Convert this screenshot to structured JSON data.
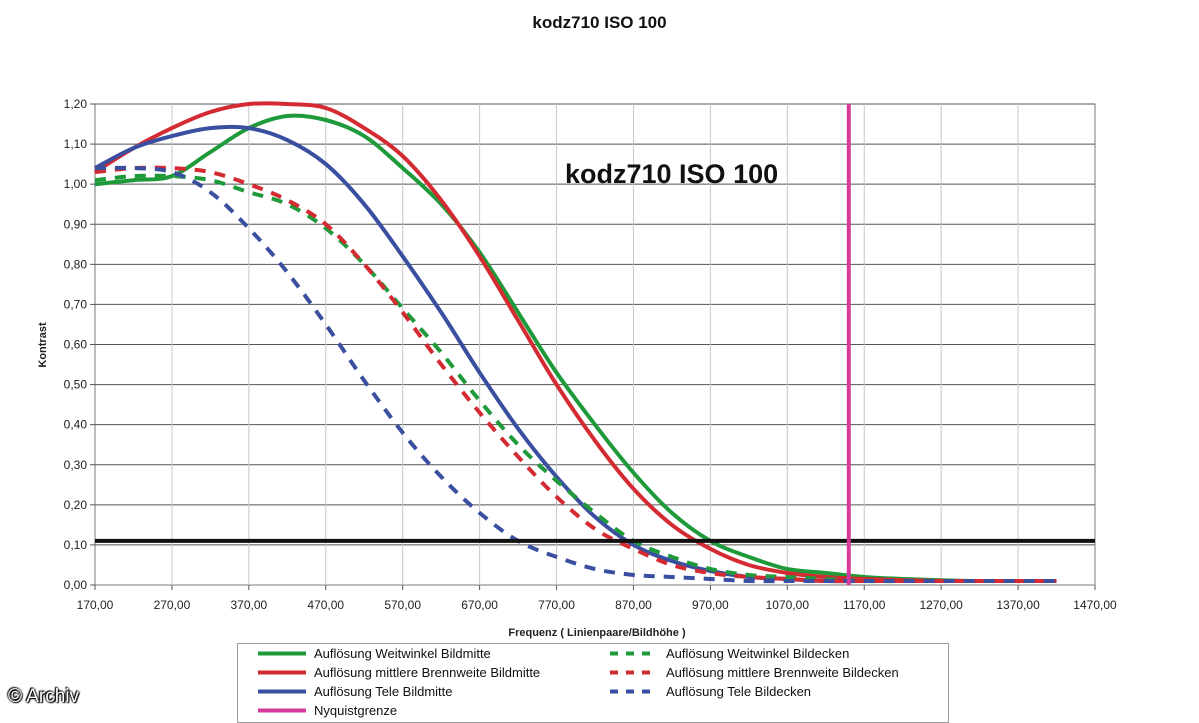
{
  "chart_data": {
    "type": "line",
    "title": "kodz710 ISO 100",
    "annotation": "kodz710 ISO 100",
    "xlabel": "Frequenz ( Linienpaare/Bildhöhe )",
    "ylabel": "Kontrast",
    "xlim": [
      170,
      1470
    ],
    "ylim": [
      0,
      1.2
    ],
    "x_ticks": [
      "170,00",
      "270,00",
      "370,00",
      "470,00",
      "570,00",
      "670,00",
      "770,00",
      "870,00",
      "970,00",
      "1070,00",
      "1170,00",
      "1270,00",
      "1370,00",
      "1470,00"
    ],
    "y_ticks": [
      "0,00",
      "0,10",
      "0,20",
      "0,30",
      "0,40",
      "0,50",
      "0,60",
      "0,70",
      "0,80",
      "0,90",
      "1,00",
      "1,10",
      "1,20"
    ],
    "grid": "horizontal",
    "legend_position": "bottom",
    "reference_lines": [
      {
        "axis": "x",
        "value": 1150,
        "color": "#d63a9a"
      },
      {
        "axis": "y",
        "value": 0.11,
        "color": "#111111"
      }
    ],
    "series": [
      {
        "name": "Auflösung Weitwinkel Bildmitte",
        "color": "#1f9a3a",
        "style": "solid",
        "x": [
          170,
          220,
          270,
          320,
          370,
          420,
          470,
          520,
          570,
          620,
          670,
          720,
          770,
          820,
          870,
          920,
          970,
          1020,
          1070,
          1120,
          1170,
          1220,
          1270,
          1320,
          1370,
          1420
        ],
        "y": [
          1.0,
          1.01,
          1.02,
          1.08,
          1.14,
          1.17,
          1.16,
          1.12,
          1.04,
          0.95,
          0.83,
          0.68,
          0.53,
          0.4,
          0.28,
          0.18,
          0.11,
          0.07,
          0.04,
          0.03,
          0.02,
          0.015,
          0.012,
          0.01,
          0.01,
          0.01
        ]
      },
      {
        "name": "Auflösung mittlere Brennweite Bildmitte",
        "color": "#d42a32",
        "style": "solid",
        "x": [
          170,
          220,
          270,
          320,
          370,
          420,
          470,
          520,
          570,
          620,
          670,
          720,
          770,
          820,
          870,
          920,
          970,
          1020,
          1070,
          1120,
          1170,
          1220,
          1270,
          1320,
          1370,
          1420
        ],
        "y": [
          1.03,
          1.09,
          1.14,
          1.18,
          1.2,
          1.2,
          1.19,
          1.14,
          1.07,
          0.96,
          0.82,
          0.66,
          0.5,
          0.36,
          0.24,
          0.15,
          0.09,
          0.05,
          0.03,
          0.02,
          0.015,
          0.012,
          0.01,
          0.01,
          0.01,
          0.01
        ]
      },
      {
        "name": "Auflösung Tele Bildmitte",
        "color": "#3a4fa0",
        "style": "solid",
        "x": [
          170,
          220,
          270,
          320,
          370,
          420,
          470,
          520,
          570,
          620,
          670,
          720,
          770,
          820,
          870,
          920,
          970,
          1020,
          1070,
          1120,
          1170,
          1220,
          1270,
          1320,
          1370,
          1420
        ],
        "y": [
          1.04,
          1.09,
          1.12,
          1.14,
          1.14,
          1.11,
          1.05,
          0.95,
          0.82,
          0.68,
          0.53,
          0.39,
          0.27,
          0.17,
          0.1,
          0.06,
          0.035,
          0.02,
          0.015,
          0.01,
          0.01,
          0.01,
          0.01,
          0.01,
          0.01,
          0.01
        ]
      },
      {
        "name": "Auflösung Weitwinkel Bildecken",
        "color": "#1f9a3a",
        "style": "dashed",
        "x": [
          170,
          220,
          270,
          320,
          370,
          420,
          470,
          520,
          570,
          620,
          670,
          720,
          770,
          820,
          870,
          920,
          970,
          1020,
          1070,
          1120,
          1170,
          1220,
          1270,
          1320,
          1370,
          1420
        ],
        "y": [
          1.01,
          1.02,
          1.02,
          1.01,
          0.98,
          0.95,
          0.89,
          0.8,
          0.69,
          0.58,
          0.46,
          0.35,
          0.26,
          0.18,
          0.11,
          0.07,
          0.04,
          0.025,
          0.02,
          0.015,
          0.01,
          0.01,
          0.01,
          0.01,
          0.01,
          0.01
        ]
      },
      {
        "name": "Auflösung mittlere Brennweite Bildecken",
        "color": "#d42a32",
        "style": "dashed",
        "x": [
          170,
          220,
          270,
          320,
          370,
          420,
          470,
          520,
          570,
          620,
          670,
          720,
          770,
          820,
          870,
          920,
          970,
          1020,
          1070,
          1120,
          1170,
          1220,
          1270,
          1320,
          1370,
          1420
        ],
        "y": [
          1.03,
          1.04,
          1.04,
          1.03,
          1.0,
          0.96,
          0.9,
          0.8,
          0.68,
          0.55,
          0.43,
          0.32,
          0.22,
          0.14,
          0.09,
          0.05,
          0.03,
          0.02,
          0.015,
          0.01,
          0.01,
          0.01,
          0.01,
          0.01,
          0.01,
          0.01
        ]
      },
      {
        "name": "Auflösung Tele Bildecken",
        "color": "#3a4fa0",
        "style": "dashed",
        "x": [
          170,
          220,
          270,
          320,
          370,
          420,
          470,
          520,
          570,
          620,
          670,
          720,
          770,
          820,
          870,
          920,
          970,
          1020,
          1070,
          1120,
          1170,
          1220,
          1270,
          1320,
          1370,
          1420
        ],
        "y": [
          1.04,
          1.04,
          1.03,
          0.98,
          0.89,
          0.78,
          0.65,
          0.51,
          0.38,
          0.27,
          0.18,
          0.11,
          0.07,
          0.04,
          0.025,
          0.02,
          0.015,
          0.01,
          0.01,
          0.01,
          0.01,
          0.01,
          0.01,
          0.01,
          0.01,
          0.01
        ]
      },
      {
        "name": "Nyquistgrenze",
        "color": "#d63a9a",
        "style": "solid",
        "x": [
          1150,
          1150
        ],
        "y": [
          0,
          1.2
        ]
      }
    ]
  },
  "copyright": "© Archiv"
}
